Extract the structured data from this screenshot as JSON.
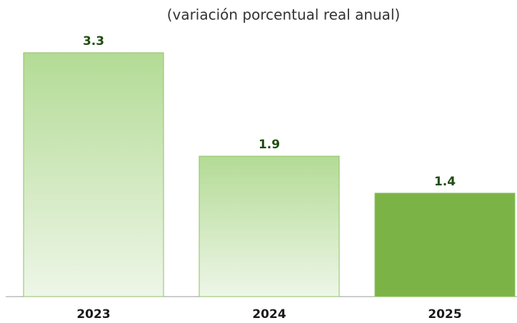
{
  "chart_data": {
    "type": "bar",
    "subtitle": "(variación porcentual real anual)",
    "categories": [
      "2023",
      "2024",
      "2025"
    ],
    "values": [
      3.3,
      1.9,
      1.4
    ],
    "colors": [
      "#b3db95",
      "#b3db95",
      "#7cb347"
    ],
    "gradient": [
      true,
      true,
      false
    ]
  }
}
